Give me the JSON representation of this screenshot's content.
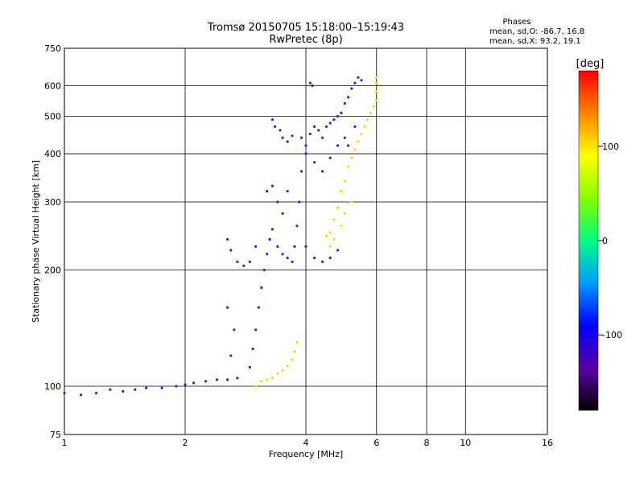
{
  "chart_data": {
    "type": "scatter",
    "title": "Tromsø 20150705 15:18:00–15:19:43",
    "subtitle": "RwPretec (8p)",
    "xlabel": "Frequency [MHz]",
    "ylabel": "Stationary phase Virtual Height [km]",
    "x_scale": "log",
    "y_scale": "log",
    "xlim": [
      1,
      16
    ],
    "ylim": [
      75,
      750
    ],
    "grid": true,
    "x_ticks": [
      1,
      2,
      4,
      6,
      8,
      10,
      16
    ],
    "x_tick_labels": [
      "1",
      "2",
      "4",
      "6",
      "8",
      "10",
      "16"
    ],
    "y_ticks": [
      75,
      100,
      200,
      300,
      400,
      500,
      600,
      750
    ],
    "y_tick_labels": [
      "75",
      "100",
      "200",
      "300",
      "400",
      "500",
      "600",
      "750"
    ],
    "legend": {
      "heading": "Phases",
      "line1": "mean, sd,O: -86.7, 16.8",
      "line2": "mean, sd,X:  93.2, 19.1"
    },
    "colorbar": {
      "label": "[deg]",
      "range": [
        -180,
        180
      ],
      "ticks": [
        100,
        0,
        -100
      ],
      "tick_labels": [
        "100",
        "0",
        "-100"
      ]
    },
    "series": [
      {
        "mode": "O",
        "phase": -90,
        "points": [
          [
            1.0,
            96
          ],
          [
            1.1,
            95
          ],
          [
            1.2,
            96
          ],
          [
            1.3,
            98
          ],
          [
            1.4,
            97
          ],
          [
            1.5,
            98
          ],
          [
            1.6,
            99
          ],
          [
            1.75,
            99
          ],
          [
            1.9,
            100
          ],
          [
            2.0,
            101
          ],
          [
            2.1,
            102
          ],
          [
            2.25,
            103
          ],
          [
            2.4,
            104
          ],
          [
            2.55,
            104
          ],
          [
            2.7,
            105
          ],
          [
            2.6,
            120
          ],
          [
            2.65,
            140
          ],
          [
            2.55,
            160
          ],
          [
            2.9,
            112
          ],
          [
            2.95,
            125
          ],
          [
            3.0,
            140
          ],
          [
            3.05,
            160
          ],
          [
            3.1,
            180
          ],
          [
            3.15,
            200
          ],
          [
            3.2,
            220
          ],
          [
            3.25,
            240
          ],
          [
            3.3,
            255
          ],
          [
            3.4,
            230
          ],
          [
            3.5,
            220
          ],
          [
            3.6,
            215
          ],
          [
            3.7,
            210
          ],
          [
            3.75,
            230
          ],
          [
            3.8,
            260
          ],
          [
            3.85,
            300
          ],
          [
            3.9,
            360
          ],
          [
            4.0,
            420
          ],
          [
            4.1,
            450
          ],
          [
            4.2,
            470
          ],
          [
            4.3,
            460
          ],
          [
            4.4,
            440
          ],
          [
            4.5,
            470
          ],
          [
            4.6,
            480
          ],
          [
            4.7,
            490
          ],
          [
            4.8,
            500
          ],
          [
            4.9,
            510
          ],
          [
            5.0,
            540
          ],
          [
            5.1,
            560
          ],
          [
            5.2,
            590
          ],
          [
            5.3,
            610
          ],
          [
            5.4,
            630
          ],
          [
            5.5,
            620
          ],
          [
            2.55,
            240
          ],
          [
            2.6,
            225
          ],
          [
            2.7,
            210
          ],
          [
            2.8,
            205
          ],
          [
            2.9,
            210
          ],
          [
            3.0,
            230
          ],
          [
            3.5,
            440
          ],
          [
            3.6,
            430
          ],
          [
            3.7,
            445
          ],
          [
            3.3,
            490
          ],
          [
            3.35,
            470
          ],
          [
            3.45,
            460
          ],
          [
            4.1,
            610
          ],
          [
            4.15,
            600
          ],
          [
            4.0,
            230
          ],
          [
            4.2,
            215
          ],
          [
            4.4,
            210
          ],
          [
            4.6,
            215
          ],
          [
            4.8,
            225
          ],
          [
            3.2,
            320
          ],
          [
            3.3,
            330
          ],
          [
            3.4,
            300
          ],
          [
            3.5,
            280
          ],
          [
            3.6,
            320
          ],
          [
            3.9,
            440
          ],
          [
            4.0,
            400
          ],
          [
            4.2,
            380
          ],
          [
            4.4,
            360
          ],
          [
            4.6,
            390
          ],
          [
            4.8,
            420
          ],
          [
            5.0,
            440
          ],
          [
            5.1,
            420
          ],
          [
            5.3,
            470
          ]
        ]
      },
      {
        "mode": "X",
        "phase": 90,
        "points": [
          [
            3.0,
            100
          ],
          [
            3.1,
            103
          ],
          [
            3.2,
            104
          ],
          [
            3.3,
            105
          ],
          [
            3.4,
            108
          ],
          [
            3.5,
            110
          ],
          [
            3.6,
            113
          ],
          [
            3.7,
            117
          ],
          [
            3.75,
            123
          ],
          [
            3.8,
            130
          ],
          [
            4.5,
            245
          ],
          [
            4.6,
            250
          ],
          [
            4.7,
            270
          ],
          [
            4.8,
            290
          ],
          [
            4.9,
            320
          ],
          [
            5.0,
            340
          ],
          [
            5.1,
            370
          ],
          [
            5.2,
            390
          ],
          [
            5.3,
            410
          ],
          [
            5.4,
            430
          ],
          [
            5.5,
            450
          ],
          [
            5.6,
            470
          ],
          [
            5.7,
            490
          ],
          [
            5.8,
            510
          ],
          [
            5.9,
            530
          ],
          [
            6.0,
            550
          ],
          [
            6.0,
            580
          ],
          [
            6.0,
            610
          ],
          [
            6.0,
            630
          ],
          [
            4.6,
            230
          ],
          [
            4.7,
            240
          ],
          [
            4.9,
            260
          ],
          [
            5.0,
            280
          ],
          [
            5.2,
            300
          ]
        ]
      }
    ]
  }
}
